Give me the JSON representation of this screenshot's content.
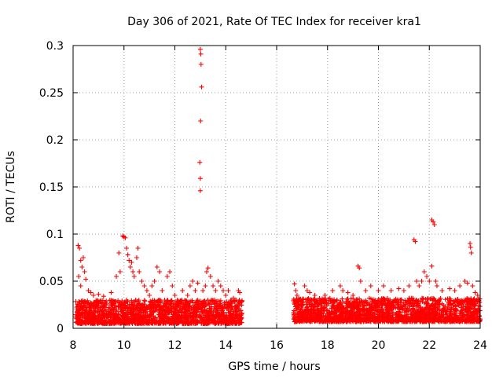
{
  "chart_data": {
    "type": "scatter",
    "title": "Day 306 of 2021, Rate Of TEC Index for receiver kra1",
    "xlabel": "GPS time / hours",
    "ylabel": "ROTI / TECUs",
    "xlim": [
      8,
      24
    ],
    "ylim": [
      0,
      0.3
    ],
    "xticks": [
      8,
      10,
      12,
      14,
      16,
      18,
      20,
      22,
      24
    ],
    "yticks": [
      0,
      0.05,
      0.1,
      0.15,
      0.2,
      0.25,
      0.3
    ],
    "xtick_labels": [
      "8",
      "10",
      "12",
      "14",
      "16",
      "18",
      "20",
      "22",
      "24"
    ],
    "ytick_labels": [
      "0",
      "0.05",
      "0.1",
      "0.15",
      "0.2",
      "0.25",
      "0.3"
    ],
    "grid": true,
    "marker": "+",
    "color": "#ff0000",
    "baseline_segments": [
      {
        "start": 8.1,
        "end": 14.65,
        "low": 0.005,
        "high": 0.03
      },
      {
        "start": 16.65,
        "end": 24.0,
        "low": 0.007,
        "high": 0.032
      }
    ],
    "points": [
      [
        8.2,
        0.088
      ],
      [
        8.25,
        0.085
      ],
      [
        8.3,
        0.072
      ],
      [
        8.35,
        0.065
      ],
      [
        8.4,
        0.075
      ],
      [
        8.45,
        0.06
      ],
      [
        8.5,
        0.052
      ],
      [
        8.3,
        0.045
      ],
      [
        8.22,
        0.055
      ],
      [
        8.6,
        0.04
      ],
      [
        8.7,
        0.038
      ],
      [
        8.8,
        0.035
      ],
      [
        9.0,
        0.036
      ],
      [
        9.2,
        0.034
      ],
      [
        9.5,
        0.038
      ],
      [
        9.7,
        0.055
      ],
      [
        9.8,
        0.08
      ],
      [
        9.85,
        0.06
      ],
      [
        9.95,
        0.098
      ],
      [
        10.0,
        0.097
      ],
      [
        10.05,
        0.096
      ],
      [
        10.1,
        0.085
      ],
      [
        10.15,
        0.078
      ],
      [
        10.2,
        0.072
      ],
      [
        10.25,
        0.065
      ],
      [
        10.3,
        0.07
      ],
      [
        10.35,
        0.06
      ],
      [
        10.4,
        0.055
      ],
      [
        10.5,
        0.075
      ],
      [
        10.55,
        0.085
      ],
      [
        10.6,
        0.06
      ],
      [
        10.7,
        0.05
      ],
      [
        10.8,
        0.045
      ],
      [
        10.9,
        0.04
      ],
      [
        11.0,
        0.035
      ],
      [
        11.1,
        0.045
      ],
      [
        11.2,
        0.05
      ],
      [
        11.3,
        0.065
      ],
      [
        11.4,
        0.06
      ],
      [
        11.5,
        0.04
      ],
      [
        11.6,
        0.03
      ],
      [
        11.7,
        0.055
      ],
      [
        11.8,
        0.06
      ],
      [
        11.9,
        0.045
      ],
      [
        12.0,
        0.035
      ],
      [
        12.1,
        0.03
      ],
      [
        12.2,
        0.028
      ],
      [
        12.3,
        0.04
      ],
      [
        12.5,
        0.035
      ],
      [
        12.6,
        0.045
      ],
      [
        12.7,
        0.05
      ],
      [
        12.8,
        0.04
      ],
      [
        12.9,
        0.048
      ],
      [
        13.0,
        0.296
      ],
      [
        13.02,
        0.291
      ],
      [
        13.03,
        0.28
      ],
      [
        13.05,
        0.256
      ],
      [
        13.01,
        0.22
      ],
      [
        12.98,
        0.176
      ],
      [
        13.0,
        0.159
      ],
      [
        13.0,
        0.146
      ],
      [
        13.1,
        0.04
      ],
      [
        13.2,
        0.045
      ],
      [
        13.25,
        0.06
      ],
      [
        13.3,
        0.064
      ],
      [
        13.4,
        0.055
      ],
      [
        13.5,
        0.045
      ],
      [
        13.6,
        0.04
      ],
      [
        13.7,
        0.05
      ],
      [
        13.8,
        0.045
      ],
      [
        13.9,
        0.04
      ],
      [
        14.0,
        0.035
      ],
      [
        14.1,
        0.04
      ],
      [
        14.2,
        0.03
      ],
      [
        14.3,
        0.032
      ],
      [
        14.5,
        0.04
      ],
      [
        14.55,
        0.038
      ],
      [
        16.7,
        0.047
      ],
      [
        16.75,
        0.04
      ],
      [
        16.8,
        0.035
      ],
      [
        16.9,
        0.03
      ],
      [
        17.0,
        0.028
      ],
      [
        17.1,
        0.045
      ],
      [
        17.2,
        0.04
      ],
      [
        17.3,
        0.038
      ],
      [
        17.5,
        0.035
      ],
      [
        17.7,
        0.03
      ],
      [
        17.9,
        0.035
      ],
      [
        18.2,
        0.04
      ],
      [
        18.5,
        0.045
      ],
      [
        18.6,
        0.04
      ],
      [
        18.8,
        0.038
      ],
      [
        19.0,
        0.035
      ],
      [
        19.2,
        0.066
      ],
      [
        19.25,
        0.064
      ],
      [
        19.3,
        0.05
      ],
      [
        19.5,
        0.04
      ],
      [
        19.7,
        0.045
      ],
      [
        20.0,
        0.04
      ],
      [
        20.2,
        0.045
      ],
      [
        20.5,
        0.04
      ],
      [
        20.8,
        0.042
      ],
      [
        21.0,
        0.04
      ],
      [
        21.2,
        0.045
      ],
      [
        21.4,
        0.094
      ],
      [
        21.45,
        0.092
      ],
      [
        21.5,
        0.05
      ],
      [
        21.6,
        0.045
      ],
      [
        21.7,
        0.05
      ],
      [
        21.8,
        0.06
      ],
      [
        21.9,
        0.055
      ],
      [
        22.0,
        0.05
      ],
      [
        22.1,
        0.066
      ],
      [
        22.1,
        0.115
      ],
      [
        22.15,
        0.113
      ],
      [
        22.2,
        0.11
      ],
      [
        22.25,
        0.05
      ],
      [
        22.3,
        0.045
      ],
      [
        22.5,
        0.04
      ],
      [
        22.8,
        0.042
      ],
      [
        23.0,
        0.04
      ],
      [
        23.2,
        0.045
      ],
      [
        23.4,
        0.05
      ],
      [
        23.5,
        0.048
      ],
      [
        23.6,
        0.09
      ],
      [
        23.62,
        0.086
      ],
      [
        23.65,
        0.08
      ],
      [
        23.7,
        0.045
      ],
      [
        23.8,
        0.038
      ],
      [
        23.9,
        0.035
      ]
    ]
  }
}
